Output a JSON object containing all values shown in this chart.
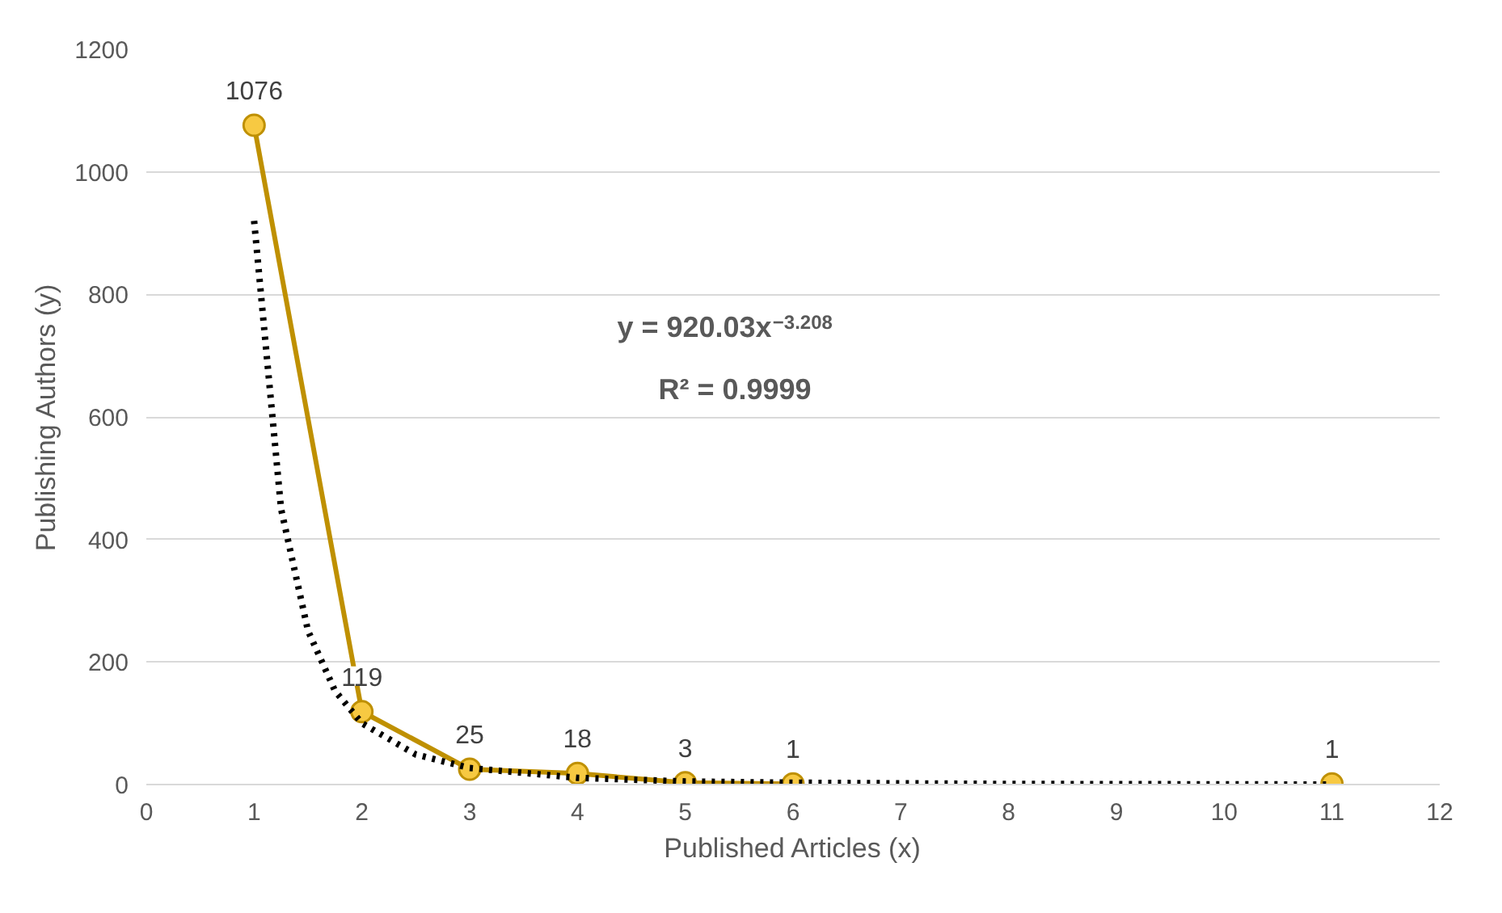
{
  "chart_data": {
    "type": "line",
    "xlabel": "Published Articles (x)",
    "ylabel": "Publishing Authors (y)",
    "xlim": [
      0,
      12
    ],
    "xticks": [
      0,
      1,
      2,
      3,
      4,
      5,
      6,
      7,
      8,
      9,
      10,
      11,
      12
    ],
    "ylim": [
      0,
      1200
    ],
    "yticks": [
      0,
      200,
      400,
      600,
      800,
      1000,
      1200
    ],
    "grid": "y",
    "series": [
      {
        "type": "line",
        "x": [
          1,
          2,
          3,
          4,
          5,
          6
        ],
        "values": [
          1076,
          119,
          25,
          18,
          3,
          1
        ],
        "color": "#bf9000",
        "marker": "circle",
        "line_style": "solid",
        "data_labels": true
      },
      {
        "type": "scatter",
        "x": [
          11
        ],
        "values": [
          1
        ],
        "color": "#bf9000",
        "marker": "circle",
        "data_labels": true
      },
      {
        "type": "line",
        "x": [
          1,
          1.25,
          1.5,
          1.75,
          2,
          2.5,
          3,
          4,
          5,
          6,
          8,
          11
        ],
        "values": [
          920,
          450,
          251,
          153,
          100,
          49,
          27,
          11,
          5,
          3,
          1,
          0
        ],
        "color": "#000000",
        "marker": "none",
        "line_style": "dotted"
      }
    ],
    "annotations": [
      "y = 920.03x$^{−3.208}$",
      "R² = 0.9999"
    ]
  }
}
